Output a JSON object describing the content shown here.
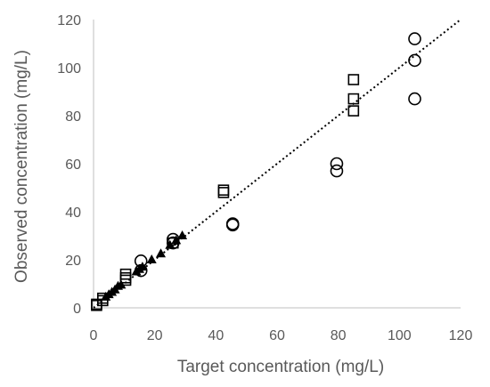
{
  "chart_data": {
    "type": "scatter",
    "title": "",
    "xlabel": "Target concentration (mg/L)",
    "ylabel": "Observed concentration (mg/L)",
    "xlim": [
      0,
      120
    ],
    "ylim": [
      0,
      120
    ],
    "x_ticks": [
      "0",
      "20",
      "40",
      "60",
      "80",
      "100",
      "120"
    ],
    "y_ticks": [
      "0",
      "20",
      "40",
      "60",
      "80",
      "100",
      "120"
    ],
    "grid": false,
    "legend": "none",
    "trendline": {
      "style": "dotted",
      "from": [
        0,
        0
      ],
      "to": [
        120,
        120
      ],
      "color": "#000000"
    },
    "series": [
      {
        "marker": "square",
        "points": [
          [
            1,
            1
          ],
          [
            1,
            1.5
          ],
          [
            3,
            3
          ],
          [
            3,
            4
          ],
          [
            10.5,
            11.5
          ],
          [
            10.5,
            12.5
          ],
          [
            10.5,
            14
          ],
          [
            26,
            27
          ],
          [
            42.5,
            48
          ],
          [
            42.5,
            49
          ],
          [
            85,
            95
          ],
          [
            85,
            87
          ],
          [
            85,
            82
          ]
        ]
      },
      {
        "marker": "circle",
        "points": [
          [
            15.5,
            15.5
          ],
          [
            15.5,
            19.5
          ],
          [
            26,
            27
          ],
          [
            26,
            28.5
          ],
          [
            45.5,
            34.5
          ],
          [
            45.5,
            35
          ],
          [
            79.5,
            57
          ],
          [
            79.5,
            60
          ],
          [
            105,
            112
          ],
          [
            105,
            103
          ],
          [
            105,
            87
          ]
        ]
      },
      {
        "marker": "triangle",
        "points": [
          [
            4,
            4.5
          ],
          [
            5,
            5.5
          ],
          [
            6,
            6.5
          ],
          [
            7,
            7.5
          ],
          [
            8,
            9
          ],
          [
            9,
            9.5
          ],
          [
            14,
            15
          ],
          [
            15,
            16
          ],
          [
            16,
            17
          ],
          [
            19,
            20
          ],
          [
            22,
            22.5
          ],
          [
            25,
            26
          ],
          [
            27,
            28
          ],
          [
            29,
            30
          ]
        ]
      }
    ]
  }
}
